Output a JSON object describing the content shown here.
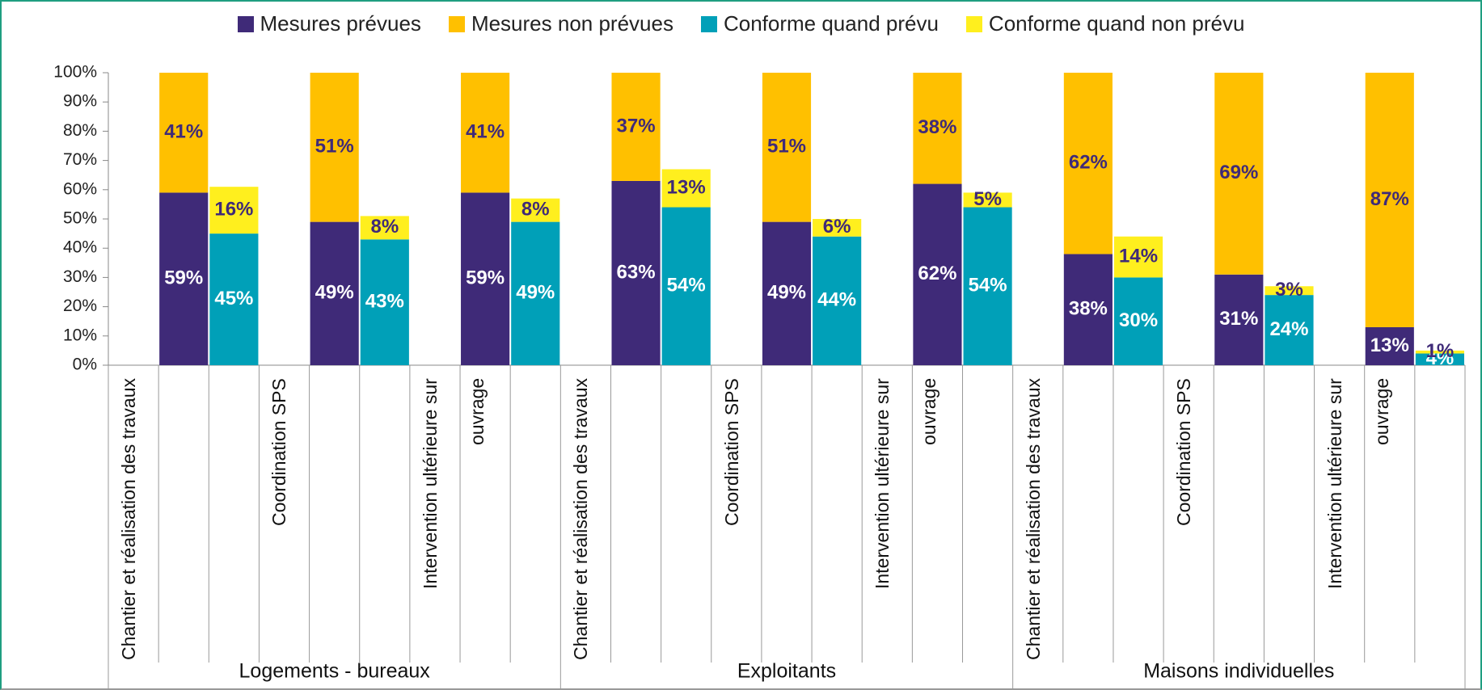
{
  "chart_data": {
    "type": "bar",
    "categories": [
      "Chantier et réalisation des travaux",
      "Coordination SPS",
      "Intervention ultérieure sur ouvrage",
      "Chantier et réalisation des travaux",
      "Coordination SPS",
      "Intervention ultérieure sur ouvrage",
      "Chantier et réalisation des travaux",
      "Coordination SPS",
      "Intervention ultérieure sur ouvrage"
    ],
    "groups": [
      "Logements - bureaux",
      "Exploitants",
      "Maisons individuelles"
    ],
    "series": [
      {
        "name": "Mesures prévues",
        "color": "#3f2a78",
        "values": [
          59,
          49,
          59,
          63,
          49,
          62,
          38,
          31,
          13
        ],
        "value_labels": [
          "59%",
          "49%",
          "59%",
          "63%",
          "49%",
          "62%",
          "38%",
          "31%",
          "13%"
        ]
      },
      {
        "name": "Mesures non prévues",
        "color": "#ffc000",
        "values": [
          41,
          51,
          41,
          37,
          51,
          38,
          62,
          69,
          87
        ],
        "value_labels": [
          "41%",
          "51%",
          "41%",
          "37%",
          "51%",
          "38%",
          "62%",
          "69%",
          "87%"
        ]
      },
      {
        "name": "Conforme quand prévu",
        "color": "#00a0b8",
        "values": [
          45,
          43,
          49,
          54,
          44,
          54,
          30,
          24,
          4
        ],
        "value_labels": [
          "45%",
          "43%",
          "49%",
          "54%",
          "44%",
          "54%",
          "30%",
          "24%",
          "4%"
        ]
      },
      {
        "name": "Conforme quand non prévu",
        "color": "#ffef1e",
        "values": [
          16,
          8,
          8,
          13,
          6,
          5,
          14,
          3,
          1
        ],
        "value_labels": [
          "16%",
          "8%",
          "8%",
          "13%",
          "6%",
          "5%",
          "14%",
          "3%",
          "1%"
        ]
      }
    ],
    "ylim": [
      0,
      100
    ],
    "yticks": [
      {
        "value": 0,
        "label": "0%"
      },
      {
        "value": 10,
        "label": "10%"
      },
      {
        "value": 20,
        "label": "20%"
      },
      {
        "value": 30,
        "label": "30%"
      },
      {
        "value": 40,
        "label": "40%"
      },
      {
        "value": 50,
        "label": "50%"
      },
      {
        "value": 60,
        "label": "60%"
      },
      {
        "value": 70,
        "label": "70%"
      },
      {
        "value": 80,
        "label": "80%"
      },
      {
        "value": 90,
        "label": "90%"
      },
      {
        "value": 100,
        "label": "100%"
      }
    ],
    "grid": false
  }
}
